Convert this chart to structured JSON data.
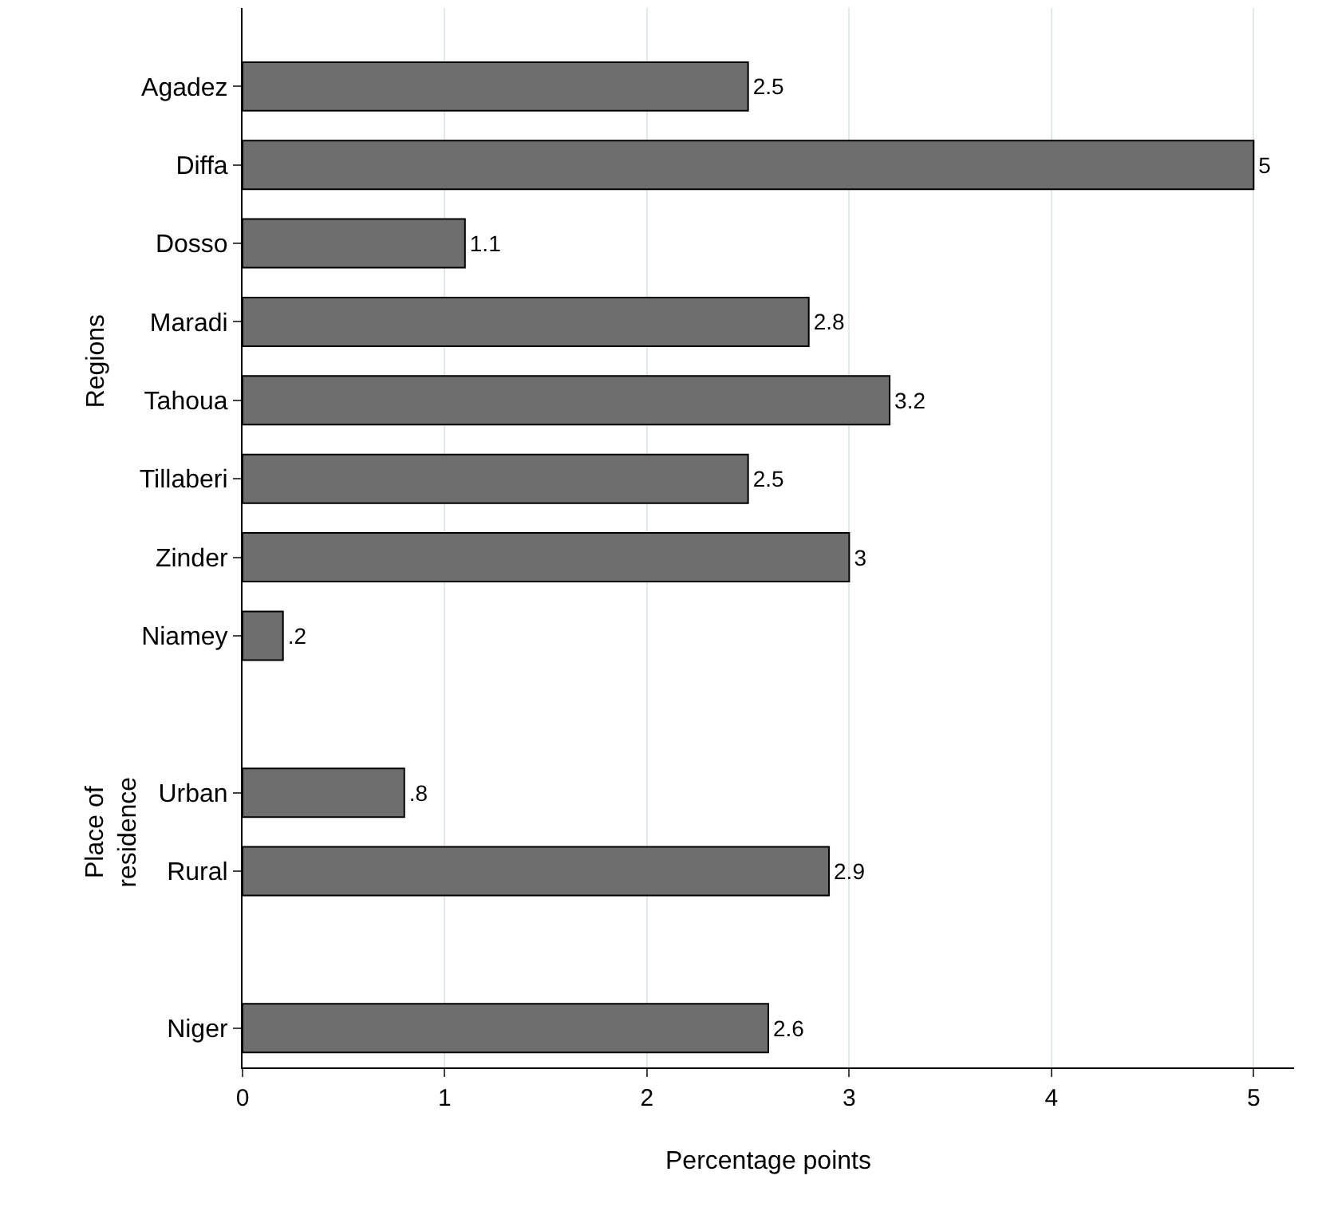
{
  "chart_data": {
    "type": "bar",
    "orientation": "horizontal",
    "xlabel": "Percentage points",
    "categories": [
      "Agadez",
      "Diffa",
      "Dosso",
      "Maradi",
      "Tahoua",
      "Tillaberi",
      "Zinder",
      "Niamey",
      null,
      "Urban",
      "Rural",
      null,
      "Niger"
    ],
    "values": [
      2.5,
      5,
      1.1,
      2.8,
      3.2,
      2.5,
      3,
      0.2,
      null,
      0.8,
      2.9,
      null,
      2.6
    ],
    "value_labels": [
      "2.5",
      "5",
      "1.1",
      "2.8",
      "3.2",
      "2.5",
      "3",
      ".2",
      null,
      ".8",
      "2.9",
      null,
      "2.6"
    ],
    "color": "#6e6e6e",
    "xlim": [
      0,
      5.2
    ],
    "xticks": [
      0,
      1,
      2,
      3,
      4,
      5
    ],
    "grid": "x",
    "annotations": [
      "Regions",
      "Place of\nresidence"
    ]
  }
}
